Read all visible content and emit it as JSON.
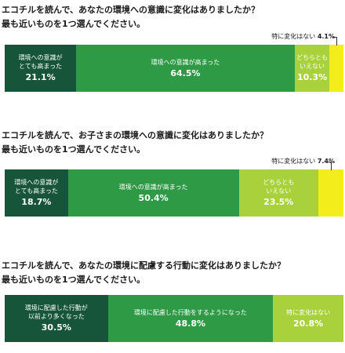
{
  "colors": {
    "dark": "#17553a",
    "mid": "#2e9a46",
    "light": "#a8d13c",
    "yellow": "#f3ed1b"
  },
  "chart_data": [
    {
      "type": "bar",
      "orientation": "horizontal-stacked-100",
      "title_lines": [
        "エコチルを読んで、あなたの環境への意識に変化はありましたか？",
        "最も近いものを1つ選んでください。"
      ],
      "segments": [
        {
          "label": "環境への意識が\nとても高まった",
          "value": 21.1,
          "value_label": "21.1%",
          "color": "dark"
        },
        {
          "label": "環境への意識が高まった",
          "value": 64.5,
          "value_label": "64.5%",
          "color": "mid"
        },
        {
          "label": "どちらとも\nいえない",
          "value": 10.3,
          "value_label": "10.3%",
          "color": "light"
        },
        {
          "label": "特に変化はない",
          "value": 4.1,
          "value_label": "4.1%",
          "color": "yellow",
          "callout": true
        }
      ]
    },
    {
      "type": "bar",
      "orientation": "horizontal-stacked-100",
      "title_lines": [
        "エコチルを読んで、お子さまの環境への意識に変化はありましたか？",
        "最も近いものを1つ選んでください。"
      ],
      "segments": [
        {
          "label": "環境への意識が\nとても高まった",
          "value": 18.7,
          "value_label": "18.7%",
          "color": "dark"
        },
        {
          "label": "環境への意識が高まった",
          "value": 50.4,
          "value_label": "50.4%",
          "color": "mid"
        },
        {
          "label": "どちらとも\nいえない",
          "value": 23.5,
          "value_label": "23.5%",
          "color": "light"
        },
        {
          "label": "特に変化はない",
          "value": 7.4,
          "value_label": "7.4%",
          "color": "yellow",
          "callout": true
        }
      ]
    },
    {
      "type": "bar",
      "orientation": "horizontal-stacked-100",
      "title_lines": [
        "エコチルを読んで、あなたの環境に配慮する行動に変化はありましたか？",
        "最も近いものを1つ選んでください。"
      ],
      "segments": [
        {
          "label": "環境に配慮した行動が\n以前より多くなった",
          "value": 30.5,
          "value_label": "30.5%",
          "color": "dark"
        },
        {
          "label": "環境に配慮した行動をするようになった",
          "value": 48.8,
          "value_label": "48.8%",
          "color": "mid"
        },
        {
          "label": "特に変化はない",
          "value": 20.8,
          "value_label": "20.8%",
          "color": "light"
        }
      ]
    }
  ]
}
